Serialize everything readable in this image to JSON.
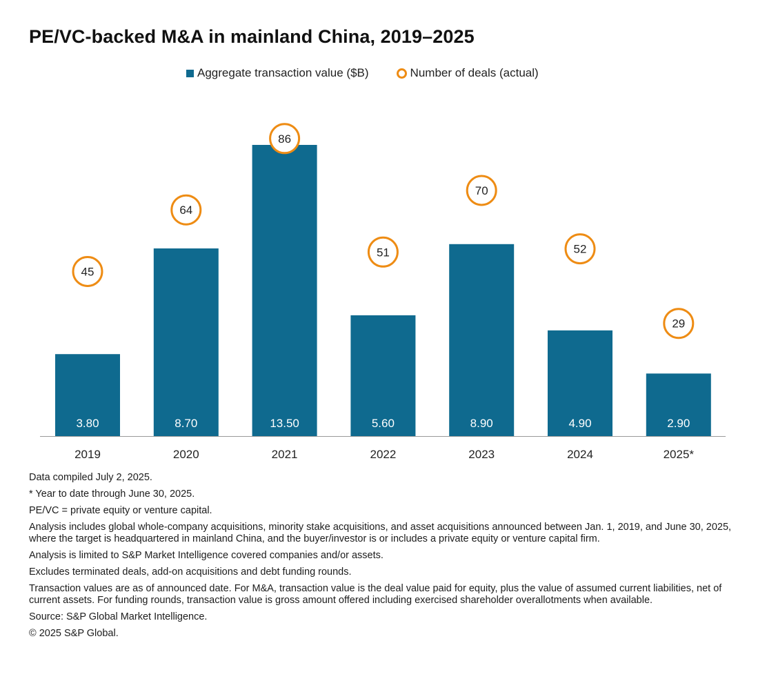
{
  "title": "PE/VC-backed M&A in mainland China, 2019–2025",
  "legend": {
    "bar_label": "Aggregate transaction value ($B)",
    "circle_label": "Number of deals (actual)"
  },
  "colors": {
    "bar": "#0f6a8f",
    "circle": "#ee8c14",
    "axis": "#999999"
  },
  "chart_data": {
    "type": "bar",
    "categories": [
      "2019",
      "2020",
      "2021",
      "2022",
      "2023",
      "2024",
      "2025*"
    ],
    "series": [
      {
        "name": "Aggregate transaction value ($B)",
        "type": "bar",
        "values": [
          3.8,
          8.7,
          13.5,
          5.6,
          8.9,
          4.9,
          2.9
        ],
        "labels": [
          "3.80",
          "8.70",
          "13.50",
          "5.60",
          "8.90",
          "4.90",
          "2.90"
        ]
      },
      {
        "name": "Number of deals (actual)",
        "type": "circle-markers",
        "values": [
          45,
          64,
          86,
          51,
          70,
          52,
          29
        ]
      }
    ],
    "ylim_bars": [
      0,
      13.5
    ],
    "ylim_deals": [
      0,
      86
    ],
    "grid": false
  },
  "notes": [
    "Data compiled July 2, 2025.",
    "* Year to date through June 30, 2025.",
    "PE/VC = private equity or venture capital.",
    "Analysis includes global whole-company acquisitions, minority stake acquisitions, and asset acquisitions announced between Jan. 1, 2019, and June 30, 2025, where the target is headquartered in mainland China, and the buyer/investor is or includes a private equity or venture capital firm.",
    "Analysis is limited to S&P Market Intelligence covered companies and/or assets.",
    "Excludes terminated deals, add-on acquisitions and debt funding rounds.",
    "Transaction values are as of announced date. For M&A, transaction value is the deal value paid for equity, plus the value of assumed current liabilities, net of current assets. For funding rounds, transaction value is gross amount offered including exercised shareholder overallotments when available.",
    "Source: S&P Global Market Intelligence.",
    "© 2025 S&P Global."
  ]
}
